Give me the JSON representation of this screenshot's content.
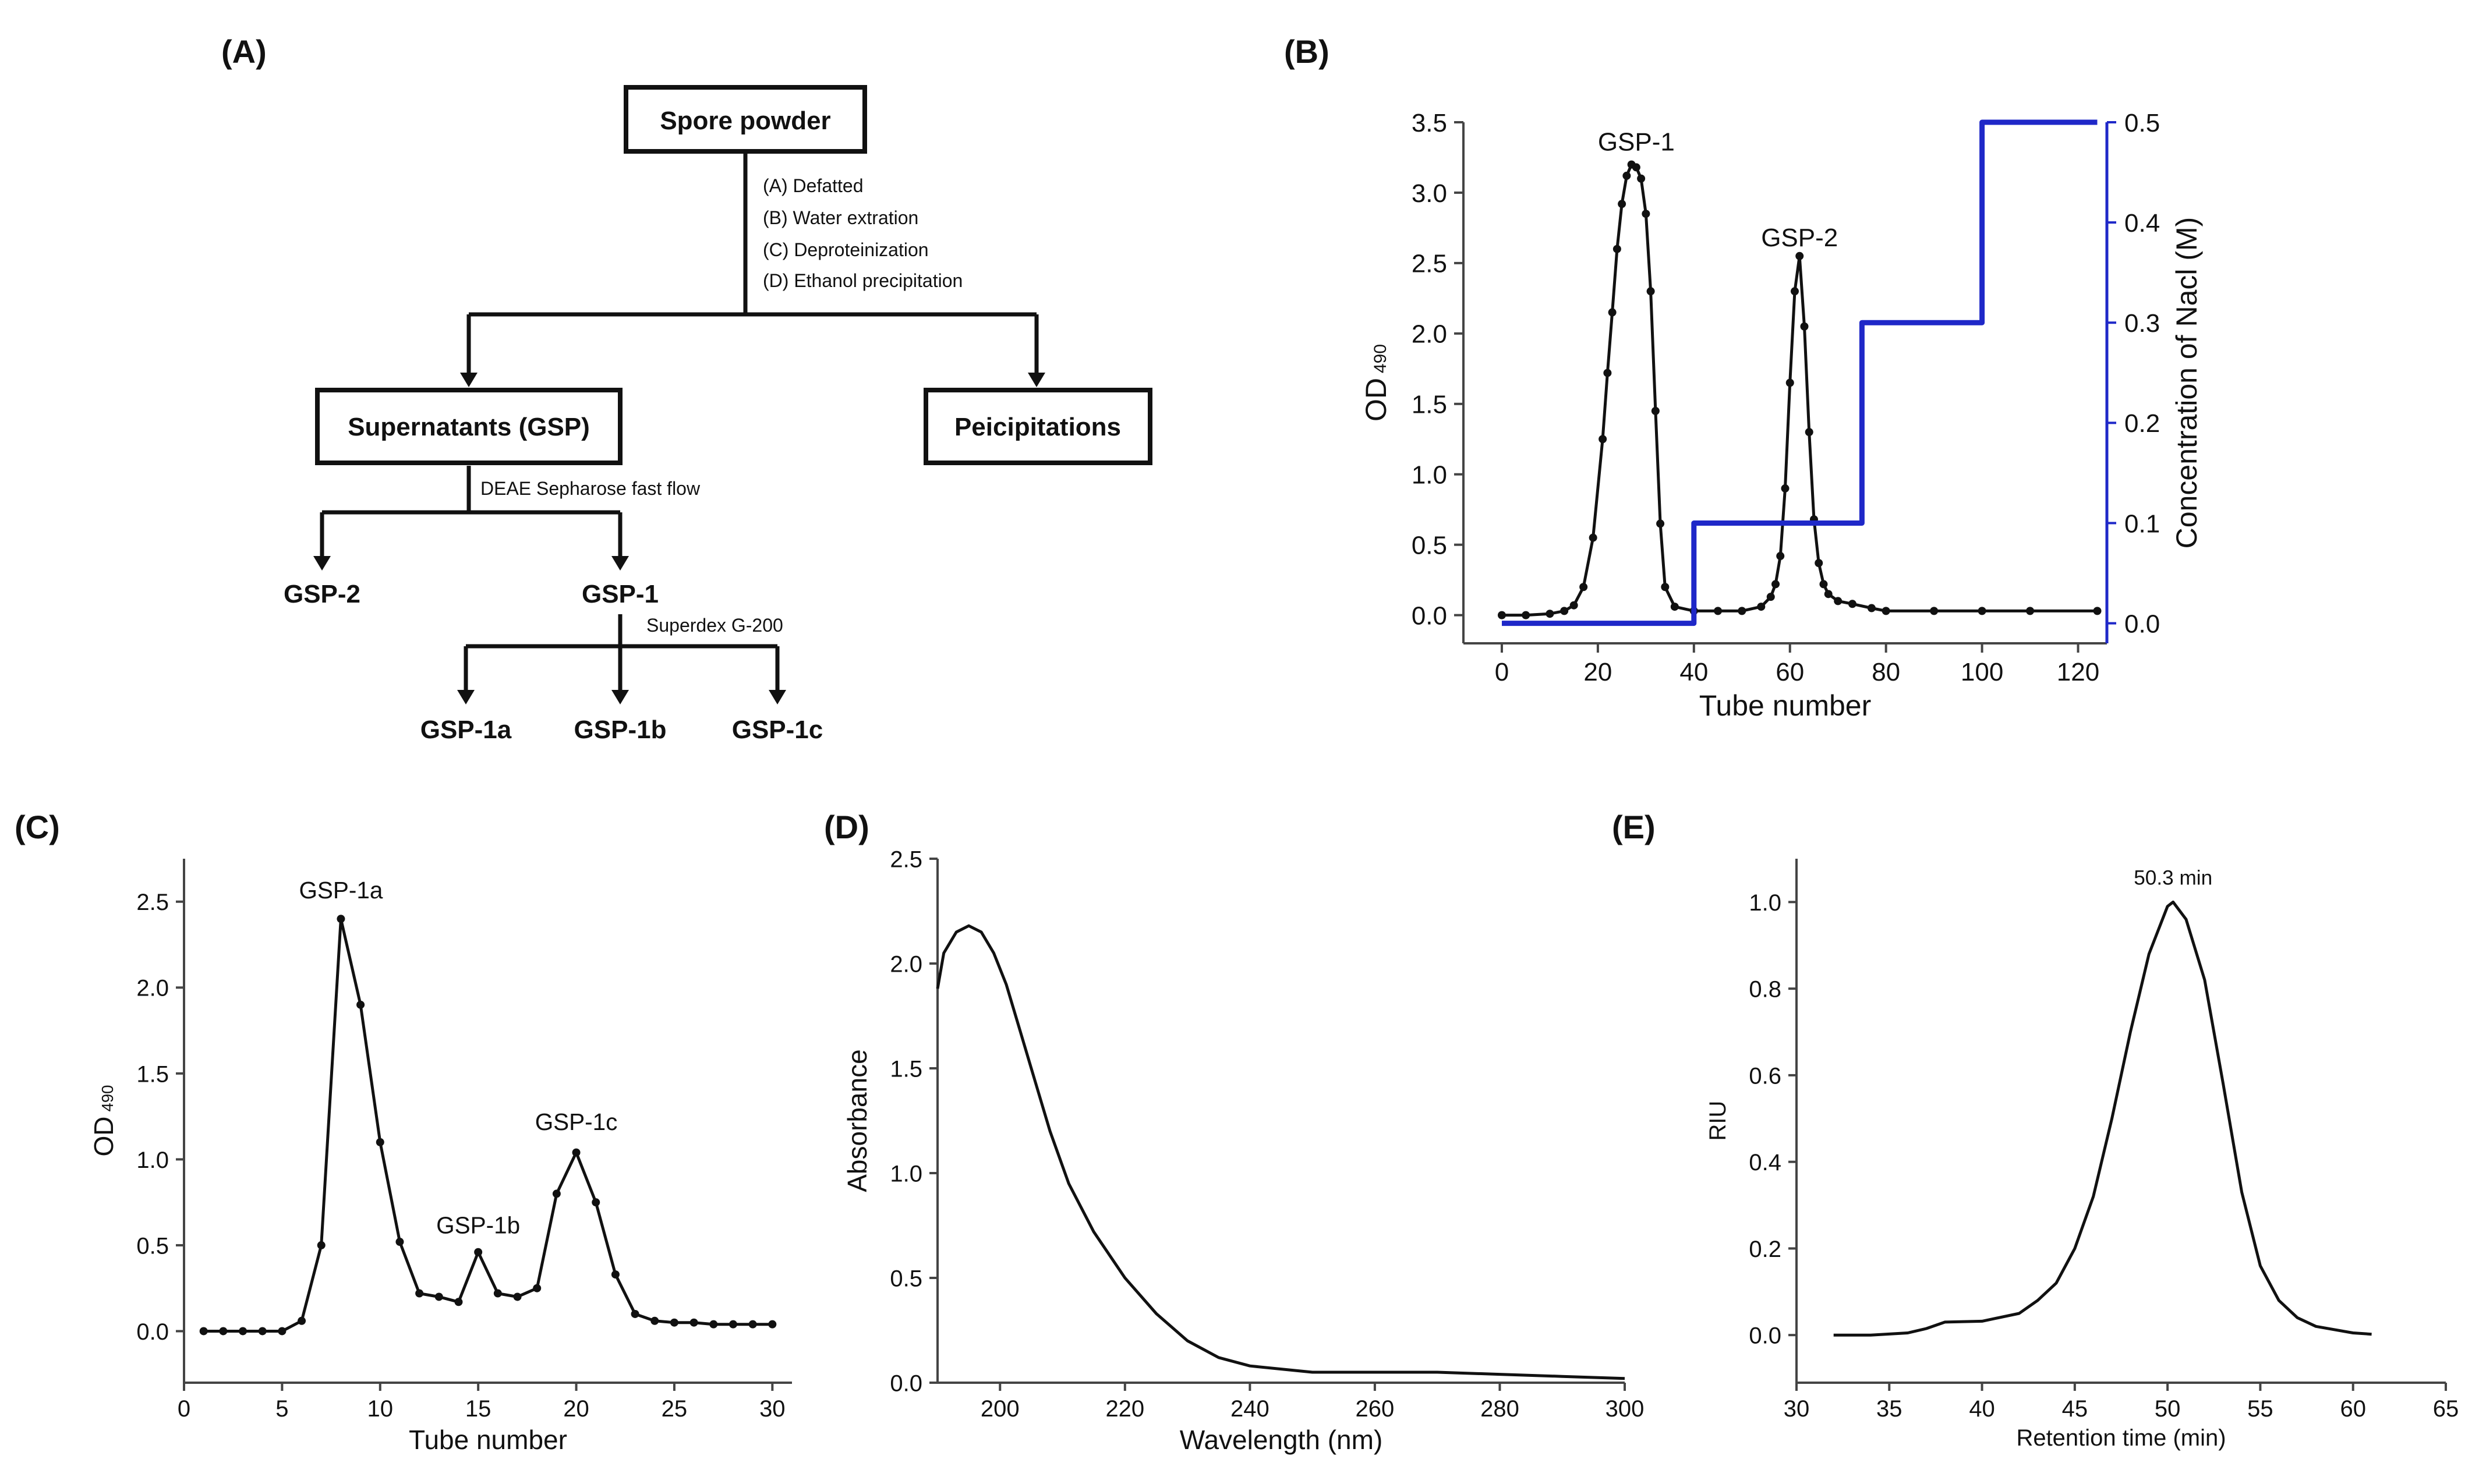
{
  "panel_labels": {
    "a": "(A)",
    "b": "(B)",
    "c": "(C)",
    "d": "(D)",
    "e": "(E)"
  },
  "flowchart": {
    "top": "Spore powder",
    "steps": [
      "(A) Defatted",
      "(B) Water extration",
      "(C) Deproteinization",
      "(D) Ethanol precipitation"
    ],
    "left": "Supernatants (GSP)",
    "right": "Peicipitations",
    "deae": "DEAE Sepharose fast flow",
    "gsp2": "GSP-2",
    "gsp1": "GSP-1",
    "superdex": "Superdex G-200",
    "gsp1a": "GSP-1a",
    "gsp1b": "GSP-1b",
    "gsp1c": "GSP-1c"
  },
  "colors": {
    "blue_line": "#1f28c8",
    "black": "#111111"
  },
  "chart_data": [
    {
      "id": "B",
      "type": "line",
      "xlabel": "Tube number",
      "ylabel": "OD",
      "ylabel_sub": "490",
      "ylabel_right": "Concentration of Nacl (M)",
      "xlim": [
        -8,
        126
      ],
      "ylim": [
        -0.2,
        3.5
      ],
      "ylim_right": [
        -0.02,
        0.5
      ],
      "xticks": [
        0,
        20,
        40,
        60,
        80,
        100,
        120
      ],
      "yticks": [
        0.0,
        0.5,
        1.0,
        1.5,
        2.0,
        2.5,
        3.0,
        3.5
      ],
      "yticks_right": [
        0.0,
        0.1,
        0.2,
        0.3,
        0.4,
        0.5
      ],
      "annotations": [
        {
          "text": "GSP-1",
          "x": 28,
          "y": 3.3
        },
        {
          "text": "GSP-2",
          "x": 62,
          "y": 2.62
        }
      ],
      "series": [
        {
          "name": "OD490",
          "color": "#111111",
          "markers": true,
          "x": [
            0,
            5,
            10,
            13,
            15,
            17,
            19,
            21,
            22,
            23,
            24,
            25,
            26,
            27,
            28,
            29,
            30,
            31,
            32,
            33,
            34,
            36,
            40,
            45,
            50,
            54,
            56,
            57,
            58,
            59,
            60,
            61,
            62,
            63,
            64,
            65,
            66,
            67,
            68,
            70,
            73,
            77,
            80,
            90,
            100,
            110,
            124
          ],
          "y": [
            0.0,
            0.0,
            0.01,
            0.03,
            0.07,
            0.2,
            0.55,
            1.25,
            1.72,
            2.15,
            2.6,
            2.92,
            3.12,
            3.2,
            3.18,
            3.1,
            2.85,
            2.3,
            1.45,
            0.65,
            0.2,
            0.06,
            0.03,
            0.03,
            0.03,
            0.06,
            0.13,
            0.22,
            0.42,
            0.9,
            1.65,
            2.3,
            2.55,
            2.05,
            1.3,
            0.68,
            0.37,
            0.22,
            0.15,
            0.1,
            0.08,
            0.05,
            0.03,
            0.03,
            0.03,
            0.03,
            0.03
          ]
        },
        {
          "name": "NaCl",
          "color": "#1f28c8",
          "axis": "right",
          "x": [
            0,
            40,
            40,
            75,
            75,
            100,
            100,
            124
          ],
          "y": [
            0.0,
            0.0,
            0.1,
            0.1,
            0.3,
            0.3,
            0.5,
            0.5
          ]
        }
      ]
    },
    {
      "id": "C",
      "type": "line",
      "xlabel": "Tube number",
      "ylabel": "OD",
      "ylabel_sub": "490",
      "xlim": [
        0,
        31
      ],
      "ylim": [
        -0.3,
        2.75
      ],
      "xticks": [
        0,
        5,
        10,
        15,
        20,
        25,
        30
      ],
      "yticks": [
        0.0,
        0.5,
        1.0,
        1.5,
        2.0,
        2.5
      ],
      "annotations": [
        {
          "text": "GSP-1a",
          "x": 8,
          "y": 2.52
        },
        {
          "text": "GSP-1b",
          "x": 15,
          "y": 0.57
        },
        {
          "text": "GSP-1c",
          "x": 20,
          "y": 1.17
        }
      ],
      "series": [
        {
          "name": "OD490",
          "color": "#111111",
          "markers": true,
          "x": [
            1,
            2,
            3,
            4,
            5,
            6,
            7,
            8,
            9,
            10,
            11,
            12,
            13,
            14,
            15,
            16,
            17,
            18,
            19,
            20,
            21,
            22,
            23,
            24,
            25,
            26,
            27,
            28,
            29,
            30
          ],
          "y": [
            0.0,
            0.0,
            0.0,
            0.0,
            0.0,
            0.06,
            0.5,
            2.4,
            1.9,
            1.1,
            0.52,
            0.22,
            0.2,
            0.17,
            0.46,
            0.22,
            0.2,
            0.25,
            0.8,
            1.04,
            0.75,
            0.33,
            0.1,
            0.06,
            0.05,
            0.05,
            0.04,
            0.04,
            0.04,
            0.04
          ]
        }
      ]
    },
    {
      "id": "D",
      "type": "line",
      "xlabel": "Wavelength (nm)",
      "ylabel": "Absorbance",
      "xlim": [
        190,
        300
      ],
      "ylim": [
        0.0,
        2.5
      ],
      "xticks": [
        200,
        220,
        240,
        260,
        280,
        300
      ],
      "yticks": [
        0.0,
        0.5,
        1.0,
        1.5,
        2.0,
        2.5
      ],
      "series": [
        {
          "name": "Absorbance",
          "color": "#111111",
          "markers": false,
          "x": [
            190,
            191,
            193,
            195,
            197,
            199,
            201,
            203,
            205,
            208,
            211,
            215,
            220,
            225,
            230,
            235,
            240,
            250,
            260,
            270,
            280,
            290,
            300
          ],
          "y": [
            1.88,
            2.05,
            2.15,
            2.18,
            2.15,
            2.05,
            1.9,
            1.7,
            1.5,
            1.2,
            0.95,
            0.72,
            0.5,
            0.33,
            0.2,
            0.12,
            0.08,
            0.05,
            0.05,
            0.05,
            0.04,
            0.03,
            0.02
          ]
        }
      ]
    },
    {
      "id": "E",
      "type": "line",
      "xlabel": "Retention time (min)",
      "ylabel": "RIU",
      "xlim": [
        30,
        65
      ],
      "ylim": [
        -0.11,
        1.1
      ],
      "xticks": [
        30,
        35,
        40,
        45,
        50,
        55,
        60,
        65
      ],
      "yticks": [
        0.0,
        0.2,
        0.4,
        0.6,
        0.8,
        1.0
      ],
      "annotations": [
        {
          "text": "50.3 min",
          "x": 50.3,
          "y": 1.04
        }
      ],
      "series": [
        {
          "name": "RIU",
          "color": "#111111",
          "markers": false,
          "x": [
            32,
            34,
            36,
            37,
            38,
            40,
            42,
            43,
            44,
            45,
            46,
            47,
            48,
            49,
            50,
            50.3,
            51,
            52,
            53,
            54,
            55,
            56,
            57,
            58,
            60,
            61
          ],
          "y": [
            0.0,
            0.0,
            0.005,
            0.015,
            0.03,
            0.032,
            0.05,
            0.08,
            0.12,
            0.2,
            0.32,
            0.5,
            0.7,
            0.88,
            0.99,
            1.0,
            0.96,
            0.82,
            0.58,
            0.33,
            0.16,
            0.08,
            0.04,
            0.02,
            0.005,
            0.002
          ]
        }
      ]
    }
  ]
}
